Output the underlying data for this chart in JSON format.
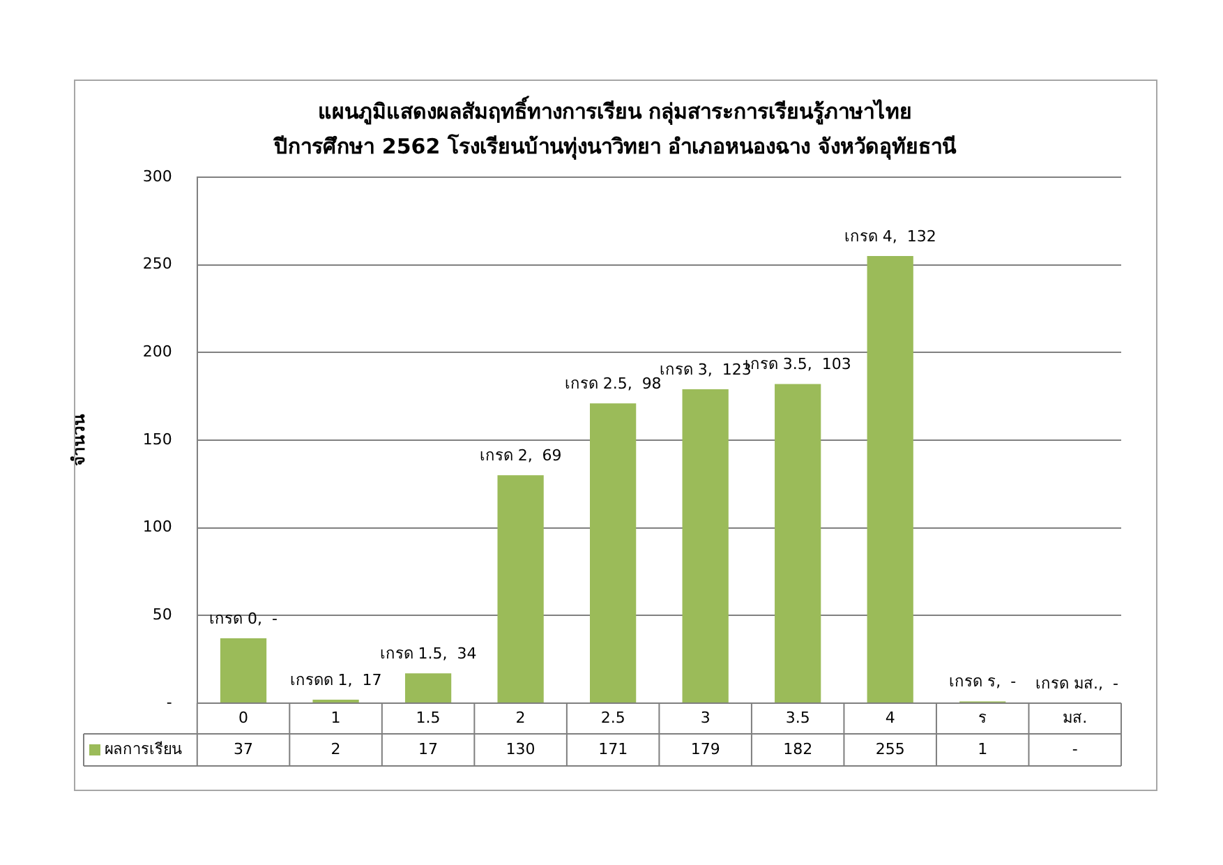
{
  "chart_data": {
    "type": "bar",
    "title": "แผนภูมิแสดงผลสัมฤทธิ์ทางการเรียน กลุ่มสาระการเรียนรู้ภาษาไทย",
    "subtitle": "ปีการศึกษา 2562 โรงเรียนบ้านทุ่งนาวิทยา อำเภอหนองฉาง จังหวัดอุทัยธานี",
    "ylabel": "จำนวน",
    "categories": [
      "0",
      "1",
      "1.5",
      "2",
      "2.5",
      "3",
      "3.5",
      "4",
      "ร",
      "มส."
    ],
    "series": [
      {
        "name": "ผลการเรียน",
        "color": "#9bbb59",
        "values": [
          37,
          2,
          17,
          130,
          171,
          179,
          182,
          255,
          1,
          null
        ]
      }
    ],
    "annotations": [
      {
        "text": "เกรด 0,  -",
        "x": "0",
        "y": 37
      },
      {
        "text": "เกรดด 1,  17",
        "x": "1",
        "y": 2
      },
      {
        "text": "เกรด 1.5,  34",
        "x": "1.5",
        "y": 17
      },
      {
        "text": "เกรด 2,  69",
        "x": "2",
        "y": 130
      },
      {
        "text": "เกรด 2.5,  98",
        "x": "2.5",
        "y": 171
      },
      {
        "text": "เกรด 3,  123",
        "x": "3",
        "y": 179
      },
      {
        "text": "เกรด 3.5,  103",
        "x": "3.5",
        "y": 182
      },
      {
        "text": "เกรด 4,  132",
        "x": "4",
        "y": 255
      },
      {
        "text": "เกรด ร,  -",
        "x": "ร",
        "y": 1
      },
      "เกรด มส.,  -"
    ],
    "ylim": [
      0,
      300
    ],
    "yticks": [
      {
        "value": 0,
        "label": "-"
      },
      50,
      100,
      150,
      200,
      250,
      300
    ],
    "grid": "y",
    "legend": "bottom",
    "data_labels": true
  }
}
